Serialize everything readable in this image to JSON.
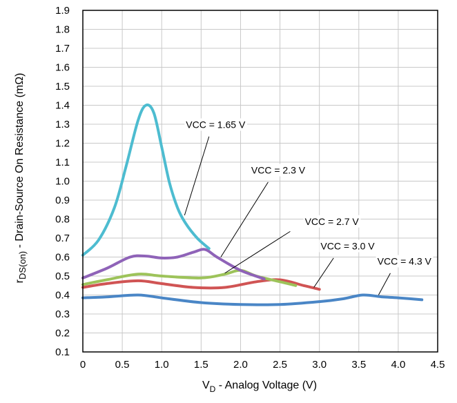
{
  "chart_data": {
    "type": "line",
    "xlabel_main": "V",
    "xlabel_sub": "D",
    "xlabel_rest": " - Analog Voltage (V)",
    "ylabel_main": "r",
    "ylabel_sub": "DS(on)",
    "ylabel_rest": " - Drain-Source On Resistance (mΩ)",
    "xlim": [
      0,
      4.5
    ],
    "ylim": [
      0.1,
      1.9
    ],
    "grid": true,
    "x_ticks": [
      0,
      0.5,
      1.0,
      1.5,
      2.0,
      2.5,
      3.0,
      3.5,
      4.0,
      4.5
    ],
    "x_tick_labels": [
      "0",
      "0.5",
      "1.0",
      "1.5",
      "2.0",
      "2.5",
      "3.0",
      "3.5",
      "4.0",
      "4.5"
    ],
    "y_ticks": [
      0.1,
      0.2,
      0.3,
      0.4,
      0.5,
      0.6,
      0.7,
      0.8,
      0.9,
      1.0,
      1.1,
      1.2,
      1.3,
      1.4,
      1.5,
      1.6,
      1.7,
      1.8,
      1.9
    ],
    "y_tick_labels": [
      "0.1",
      "0.2",
      "0.3",
      "0.4",
      "0.5",
      "0.6",
      "0.7",
      "0.8",
      "0.9",
      "1.0",
      "1.1",
      "1.2",
      "1.3",
      "1.4",
      "1.5",
      "1.6",
      "1.7",
      "1.8",
      "1.9"
    ],
    "series": [
      {
        "name": "VCC = 4.3 V",
        "color": "#4a86c6",
        "x": [
          0,
          0.3,
          0.7,
          1.0,
          1.5,
          2.0,
          2.5,
          3.0,
          3.3,
          3.55,
          3.8,
          4.0,
          4.3
        ],
        "y": [
          0.385,
          0.39,
          0.4,
          0.385,
          0.36,
          0.35,
          0.35,
          0.365,
          0.38,
          0.4,
          0.39,
          0.385,
          0.375
        ]
      },
      {
        "name": "VCC = 3.0 V",
        "color": "#d05454",
        "x": [
          0,
          0.3,
          0.7,
          1.0,
          1.4,
          1.8,
          2.2,
          2.5,
          2.8,
          3.0
        ],
        "y": [
          0.44,
          0.46,
          0.475,
          0.46,
          0.44,
          0.44,
          0.47,
          0.48,
          0.45,
          0.43
        ]
      },
      {
        "name": "VCC = 2.7 V",
        "color": "#9dc35a",
        "x": [
          0,
          0.3,
          0.7,
          1.0,
          1.5,
          1.8,
          2.0,
          2.2,
          2.5,
          2.7
        ],
        "y": [
          0.455,
          0.48,
          0.51,
          0.5,
          0.49,
          0.51,
          0.53,
          0.5,
          0.47,
          0.45
        ]
      },
      {
        "name": "VCC = 2.3 V",
        "color": "#8f63b8",
        "x": [
          0,
          0.3,
          0.6,
          0.8,
          1.0,
          1.2,
          1.4,
          1.55,
          1.7,
          2.0,
          2.3
        ],
        "y": [
          0.49,
          0.54,
          0.6,
          0.605,
          0.595,
          0.6,
          0.625,
          0.64,
          0.6,
          0.53,
          0.485
        ]
      },
      {
        "name": "VCC = 1.65 V",
        "color": "#4dbcd0",
        "x": [
          0,
          0.2,
          0.4,
          0.55,
          0.7,
          0.8,
          0.9,
          1.0,
          1.1,
          1.2,
          1.3,
          1.45,
          1.6
        ],
        "y": [
          0.61,
          0.69,
          0.86,
          1.08,
          1.32,
          1.4,
          1.36,
          1.18,
          0.99,
          0.86,
          0.78,
          0.7,
          0.645
        ]
      }
    ],
    "annotations": [
      {
        "label": "VCC = 1.65 V",
        "text_x": 2.06,
        "text_y": 1.28,
        "line_from": [
          1.6,
          1.235
        ],
        "line_to": [
          1.29,
          0.82
        ]
      },
      {
        "label": "VCC = 2.3 V",
        "text_x": 2.82,
        "text_y": 1.04,
        "line_from": [
          2.35,
          0.995
        ],
        "line_to": [
          1.75,
          0.6
        ]
      },
      {
        "label": "VCC = 2.7 V",
        "text_x": 3.5,
        "text_y": 0.77,
        "line_from": [
          2.63,
          0.735
        ],
        "line_to": [
          1.8,
          0.515
        ]
      },
      {
        "label": "VCC = 3.0 V",
        "text_x": 3.7,
        "text_y": 0.64,
        "line_from": [
          3.18,
          0.595
        ],
        "line_to": [
          2.93,
          0.44
        ]
      },
      {
        "label": "VCC = 4.3 V",
        "text_x": 4.42,
        "text_y": 0.56,
        "line_from": [
          3.9,
          0.515
        ],
        "line_to": [
          3.75,
          0.4
        ]
      }
    ]
  }
}
